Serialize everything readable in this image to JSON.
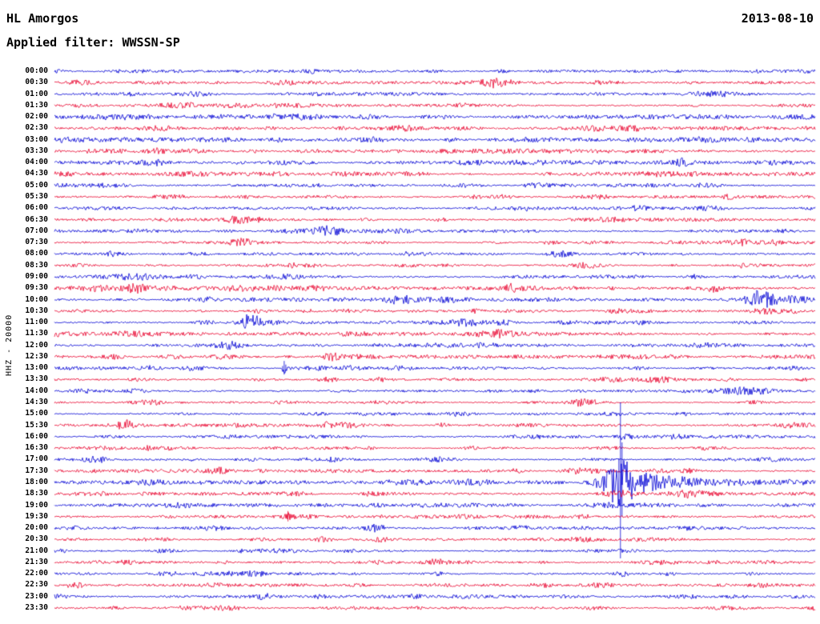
{
  "header": {
    "station": "HL Amorgos",
    "date": "2013-08-10",
    "filter_label": "Applied filter: WWSSN-SP"
  },
  "y_axis_label": "HHZ - 20000",
  "colors": {
    "trace_blue": "#0000d4",
    "trace_red": "#e8002d",
    "text": "#000000",
    "background": "#ffffff"
  },
  "chart_data": {
    "type": "line",
    "subtype": "helicorder-seismogram",
    "station": "HL Amorgos",
    "date": "2013-08-10",
    "filter": "WWSSN-SP",
    "channel_scale_label": "HHZ - 20000",
    "minutes_per_row": 30,
    "row_color_pattern": [
      "blue",
      "red"
    ],
    "rows": [
      "00:00",
      "00:30",
      "01:00",
      "01:30",
      "02:00",
      "02:30",
      "03:00",
      "03:30",
      "04:00",
      "04:30",
      "05:00",
      "05:30",
      "06:00",
      "06:30",
      "07:00",
      "07:30",
      "08:00",
      "08:30",
      "09:00",
      "09:30",
      "10:00",
      "10:30",
      "11:00",
      "11:30",
      "12:00",
      "12:30",
      "13:00",
      "13:30",
      "14:00",
      "14:30",
      "15:00",
      "15:30",
      "16:00",
      "16:30",
      "17:00",
      "17:30",
      "18:00",
      "18:30",
      "19:00",
      "19:30",
      "20:00",
      "20:30",
      "21:00",
      "21:30",
      "22:00",
      "22:30",
      "23:00",
      "23:30"
    ],
    "noise_amp_default": 1.25,
    "noise_overrides": {
      "02:00": 1.8,
      "02:30": 1.8,
      "03:00": 1.8,
      "03:30": 1.8,
      "04:00": 1.7,
      "04:30": 1.7,
      "05:00": 1.4,
      "05:30": 1.4,
      "06:00": 1.3,
      "06:30": 1.4,
      "09:00": 1.6,
      "09:30": 1.7,
      "10:00": 1.6,
      "10:30": 1.6,
      "11:00": 1.5,
      "11:30": 1.5,
      "12:00": 1.6,
      "12:30": 1.6,
      "14:30": 1.0,
      "15:00": 1.0,
      "17:30": 1.4,
      "18:00": 1.5,
      "18:30": 1.5,
      "19:00": 1.4,
      "21:00": 1.0,
      "23:30": 1.1
    },
    "events": [
      {
        "time": "00:30",
        "x_frac": 0.576,
        "amp": 6,
        "width": 10,
        "tail": 25
      },
      {
        "time": "07:00",
        "x_frac": 0.36,
        "amp": 4,
        "width": 16,
        "tail": 30
      },
      {
        "time": "07:30",
        "x_frac": 0.244,
        "amp": 3.5,
        "width": 9,
        "tail": 15
      },
      {
        "time": "07:30",
        "x_frac": 0.907,
        "amp": 3,
        "width": 8,
        "tail": 12
      },
      {
        "time": "08:00",
        "x_frac": 0.665,
        "amp": 3,
        "width": 14,
        "tail": 20
      },
      {
        "time": "09:30",
        "x_frac": 0.107,
        "amp": 4.5,
        "width": 9,
        "tail": 18
      },
      {
        "time": "09:30",
        "x_frac": 0.865,
        "amp": 3.5,
        "width": 8,
        "tail": 14
      },
      {
        "time": "10:00",
        "x_frac": 0.928,
        "amp": 13,
        "width": 12,
        "tail": 35
      },
      {
        "time": "10:30",
        "x_frac": 0.93,
        "amp": 2.5,
        "width": 10,
        "tail": 15
      },
      {
        "time": "11:00",
        "x_frac": 0.258,
        "amp": 11,
        "width": 10,
        "tail": 30
      },
      {
        "time": "12:30",
        "x_frac": 0.365,
        "amp": 4.5,
        "width": 7,
        "tail": 12
      },
      {
        "time": "13:00",
        "x_frac": 0.302,
        "amp": 7,
        "width": 2,
        "tail": 6,
        "spike_up": 9,
        "spike_down": 8
      },
      {
        "time": "13:30",
        "x_frac": 0.36,
        "amp": 3.5,
        "width": 9,
        "tail": 14
      },
      {
        "time": "15:30",
        "x_frac": 0.097,
        "amp": 4,
        "width": 8,
        "tail": 12
      },
      {
        "time": "16:00",
        "x_frac": 0.749,
        "amp": 3,
        "width": 10,
        "tail": 15
      },
      {
        "time": "17:00",
        "x_frac": 0.055,
        "amp": 3.5,
        "width": 8,
        "tail": 10
      },
      {
        "time": "17:00",
        "x_frac": 0.365,
        "amp": 3,
        "width": 8,
        "tail": 10
      },
      {
        "time": "18:00",
        "x_frac": 0.744,
        "amp": 28,
        "width": 16,
        "tail": 65,
        "spike_up": 100,
        "spike_down": 95
      },
      {
        "time": "18:30",
        "x_frac": 0.739,
        "amp": 4,
        "width": 18,
        "tail": 25
      },
      {
        "time": "19:30",
        "x_frac": 0.307,
        "amp": 3,
        "width": 2,
        "tail": 5,
        "spike_up": 7,
        "spike_down": 6
      },
      {
        "time": "20:00",
        "x_frac": 0.423,
        "amp": 4,
        "width": 9,
        "tail": 14
      },
      {
        "time": "21:30",
        "x_frac": 0.502,
        "amp": 3,
        "width": 8,
        "tail": 10
      },
      {
        "time": "22:00",
        "x_frac": 0.744,
        "amp": 3.5,
        "width": 8,
        "tail": 12
      },
      {
        "time": "22:30",
        "x_frac": 0.028,
        "amp": 4,
        "width": 7,
        "tail": 10
      },
      {
        "time": "23:00",
        "x_frac": 0.276,
        "amp": 3,
        "width": 7,
        "tail": 10
      }
    ]
  }
}
